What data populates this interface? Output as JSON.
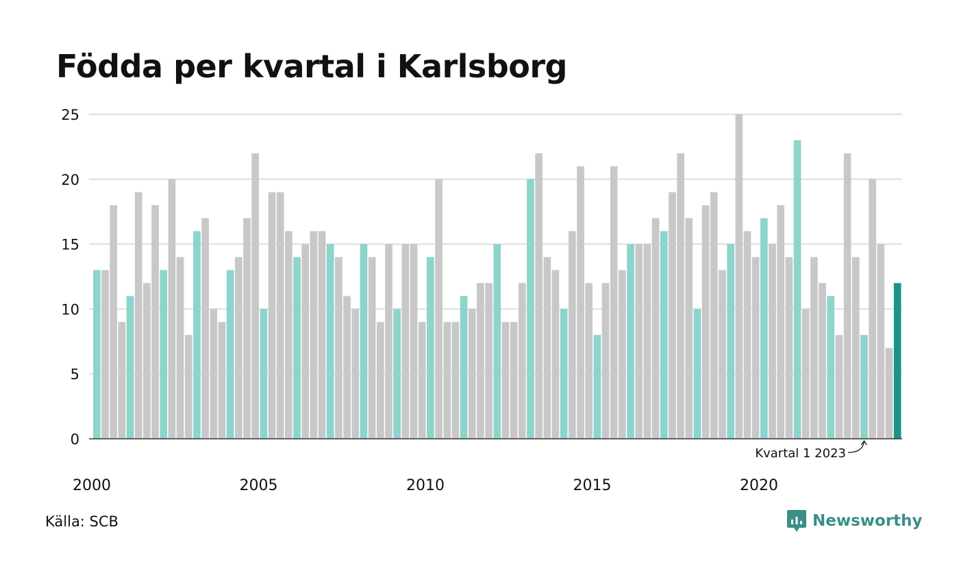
{
  "title": "Födda per kvartal i Karlsborg",
  "source": "Källa: SCB",
  "brand": {
    "name": "Newsworthy",
    "icon": "newsworthy-logo-icon"
  },
  "colors": {
    "q1": "#8dd4cc",
    "other": "#c8c8c8",
    "latest": "#1a9488",
    "grid": "#dddddd",
    "axis": "#333333",
    "text": "#111111"
  },
  "chart_data": {
    "type": "bar",
    "title": "Födda per kvartal i Karlsborg",
    "xlabel": "",
    "ylabel": "",
    "ylim": [
      0,
      25
    ],
    "yticks": [
      0,
      5,
      10,
      15,
      20,
      25
    ],
    "xtick_labels": [
      "2000",
      "2005",
      "2010",
      "2015",
      "2020"
    ],
    "xtick_years": [
      2000,
      2005,
      2010,
      2015,
      2020
    ],
    "grid": true,
    "start": {
      "year": 2000,
      "quarter": 1
    },
    "values": [
      13,
      13,
      18,
      9,
      11,
      19,
      12,
      18,
      13,
      20,
      14,
      8,
      16,
      17,
      10,
      9,
      13,
      14,
      17,
      22,
      10,
      19,
      19,
      16,
      14,
      15,
      16,
      16,
      15,
      14,
      11,
      10,
      15,
      14,
      9,
      15,
      10,
      15,
      15,
      9,
      14,
      20,
      9,
      9,
      11,
      10,
      12,
      12,
      15,
      9,
      9,
      12,
      20,
      22,
      14,
      13,
      10,
      16,
      21,
      12,
      8,
      12,
      21,
      13,
      15,
      15,
      15,
      17,
      16,
      19,
      22,
      17,
      10,
      18,
      19,
      13,
      15,
      25,
      16,
      14,
      17,
      15,
      18,
      14,
      23,
      10,
      14,
      12,
      11,
      8,
      22,
      14,
      8,
      20,
      15,
      7,
      12
    ],
    "highlight": "Q1 bars in teal; latest bar in dark teal",
    "annotation": {
      "text": "Kvartal 1 2023",
      "year": 2023,
      "quarter": 1
    }
  }
}
